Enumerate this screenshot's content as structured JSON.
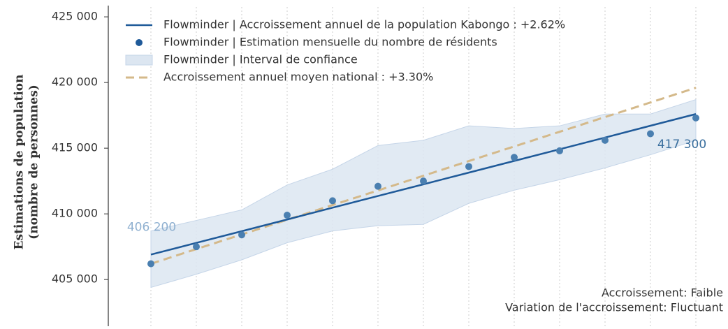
{
  "chart_data": {
    "type": "line",
    "y_label": [
      "Estimations de population",
      "(nombre de personnes)"
    ],
    "categories": [
      null,
      null,
      null,
      null,
      null,
      null,
      null,
      null,
      null,
      null,
      null,
      null,
      null
    ],
    "ylim": [
      401500,
      425750
    ],
    "yticks": [
      {
        "value": 405000,
        "label": "405 000"
      },
      {
        "value": 410000,
        "label": "410 000"
      },
      {
        "value": 415000,
        "label": "415 000"
      },
      {
        "value": 420000,
        "label": "420 000"
      },
      {
        "value": 425000,
        "label": "425 000"
      }
    ],
    "x_grid": true,
    "legend": "upper left",
    "series": [
      {
        "kind": "line",
        "name": "Flowminder | Accroissement annuel de la population Kabongo : +2.62%",
        "color": "#1f5a99",
        "values": [
          406900,
          407790,
          408680,
          409570,
          410470,
          411360,
          412250,
          413140,
          414030,
          414920,
          415810,
          416710,
          417600
        ]
      },
      {
        "kind": "scatter",
        "name": "Flowminder | Estimation mensuelle du nombre de résidents",
        "color": "#4a7fb0",
        "values": [
          406200,
          407500,
          408400,
          409900,
          411000,
          412100,
          412500,
          413600,
          414300,
          414800,
          415600,
          416100,
          417300
        ],
        "value_labels": [
          "406 200",
          null,
          null,
          null,
          null,
          null,
          null,
          null,
          null,
          null,
          null,
          null,
          "417 300"
        ]
      },
      {
        "kind": "band",
        "name": "Flowminder | Interval de confiance",
        "color": "#dce6f1",
        "lower": [
          404400,
          405400,
          406500,
          407800,
          408700,
          409100,
          409200,
          410800,
          411800,
          412600,
          413500,
          414500,
          415600
        ],
        "upper": [
          408700,
          409500,
          410300,
          412200,
          413400,
          415200,
          415600,
          416700,
          416500,
          416700,
          417600,
          417600,
          418700
        ]
      },
      {
        "kind": "dashed",
        "name": "Accroissement annuel moyen national : +3.30%",
        "color": "#d4b98a",
        "values": [
          406200,
          407320,
          408430,
          409550,
          410670,
          411780,
          412900,
          414020,
          415130,
          416250,
          417370,
          418480,
          419600
        ]
      }
    ],
    "annotations": [
      "Accroissement: Faible",
      "Variation de l'accroissement: Fluctuant"
    ]
  }
}
